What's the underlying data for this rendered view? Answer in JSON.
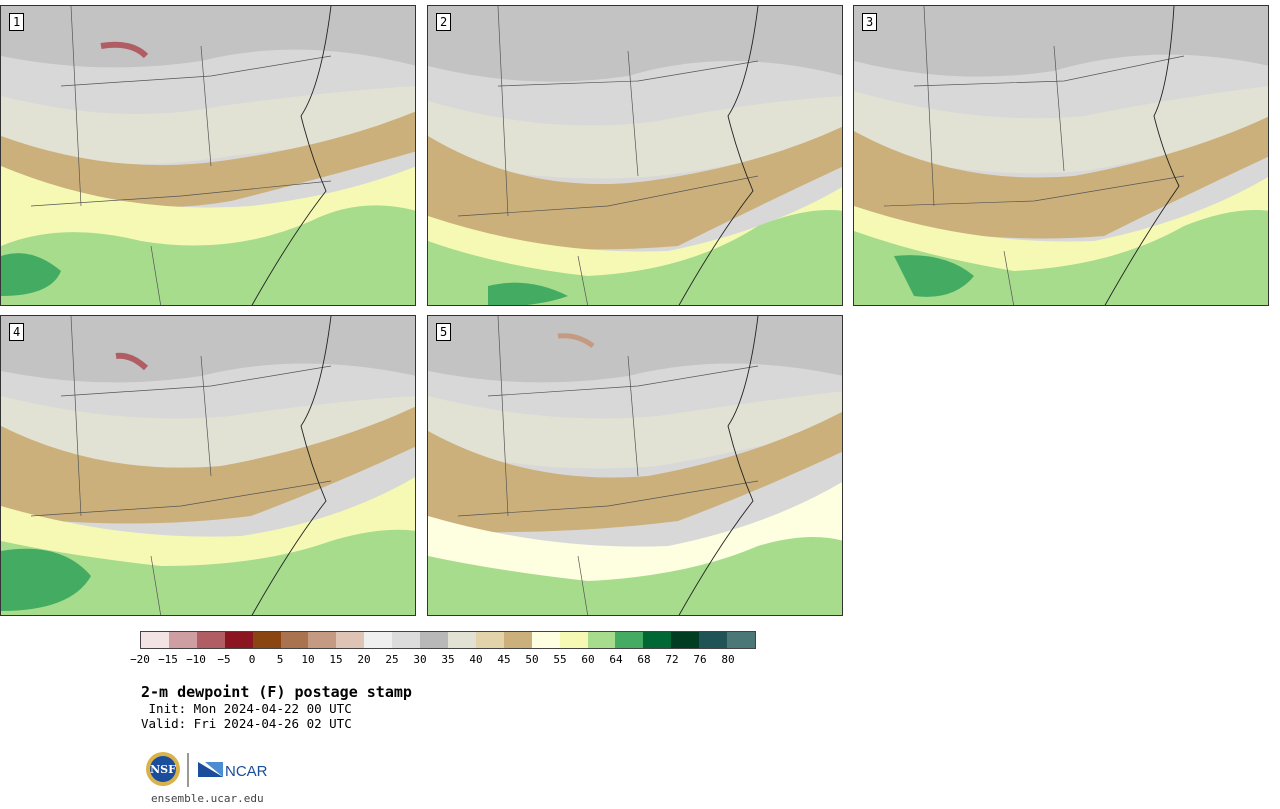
{
  "panels": [
    {
      "label": "1"
    },
    {
      "label": "2"
    },
    {
      "label": "3"
    },
    {
      "label": "4"
    },
    {
      "label": "5"
    }
  ],
  "colorbar": {
    "colors": [
      "#f3e4e4",
      "#cf9ea3",
      "#b05e64",
      "#8b1520",
      "#8b4513",
      "#a9734f",
      "#c49a82",
      "#dfc4b6",
      "#efefef",
      "#dcdcdc",
      "#b8b8b8",
      "#e1e1d4",
      "#e3d3aa",
      "#cbb07b",
      "#fefee0",
      "#f5f9b4",
      "#a6dc8c",
      "#43ac62",
      "#006835",
      "#003d21",
      "#1f5356",
      "#4b7777"
    ],
    "ticks": [
      "−20",
      "−15",
      "−10",
      "−5",
      "0",
      "5",
      "10",
      "15",
      "20",
      "25",
      "30",
      "35",
      "40",
      "45",
      "50",
      "55",
      "60",
      "64",
      "68",
      "72",
      "76",
      "80"
    ]
  },
  "title": "2-m dewpoint (F) postage stamp",
  "init": " Init: Mon 2024-04-22 00 UTC",
  "valid": "Valid: Fri 2024-04-26 02 UTC",
  "logos": {
    "nsf": "NSF",
    "ncar": "NCAR"
  },
  "site": "ensemble.ucar.edu"
}
